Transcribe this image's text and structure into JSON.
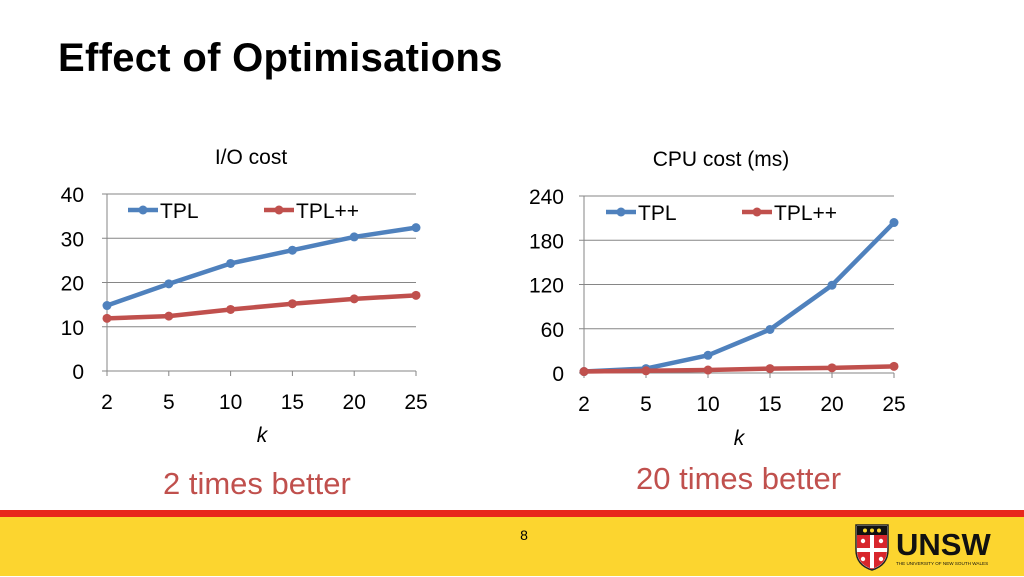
{
  "slide": {
    "title": "Effect of Optimisations",
    "page_number": "8"
  },
  "captions": {
    "left": "2 times better",
    "right": "20 times better"
  },
  "logo": {
    "name": "UNSW",
    "subtitle": "THE UNIVERSITY OF NEW SOUTH WALES"
  },
  "colors": {
    "tpl": "#4f81bd",
    "tpl_plus": "#c0504d",
    "grid": "#868686",
    "footer": "#fcd52f",
    "footer_line": "#e8261c"
  },
  "chart_data": [
    {
      "type": "line",
      "title": "I/O cost",
      "xlabel": "k",
      "ylabel": "",
      "categories": [
        "2",
        "5",
        "10",
        "15",
        "20",
        "25"
      ],
      "ylim": [
        0,
        40
      ],
      "yticks": [
        "0",
        "10",
        "20",
        "30",
        "40"
      ],
      "legend": "top",
      "grid": true,
      "series": [
        {
          "name": "TPL",
          "values": [
            14.8,
            19.7,
            24.3,
            27.3,
            30.3,
            32.4
          ]
        },
        {
          "name": "TPL++",
          "values": [
            11.9,
            12.4,
            13.9,
            15.2,
            16.3,
            17.1
          ]
        }
      ]
    },
    {
      "type": "line",
      "title": "CPU cost (ms)",
      "xlabel": "k",
      "ylabel": "",
      "categories": [
        "2",
        "5",
        "10",
        "15",
        "20",
        "25"
      ],
      "ylim": [
        0,
        240
      ],
      "yticks": [
        "0",
        "60",
        "120",
        "180",
        "240"
      ],
      "legend": "top",
      "grid": true,
      "series": [
        {
          "name": "TPL",
          "values": [
            2,
            6,
            24,
            59,
            119,
            204
          ]
        },
        {
          "name": "TPL++",
          "values": [
            2,
            3,
            4,
            6,
            7,
            9
          ]
        }
      ]
    }
  ]
}
